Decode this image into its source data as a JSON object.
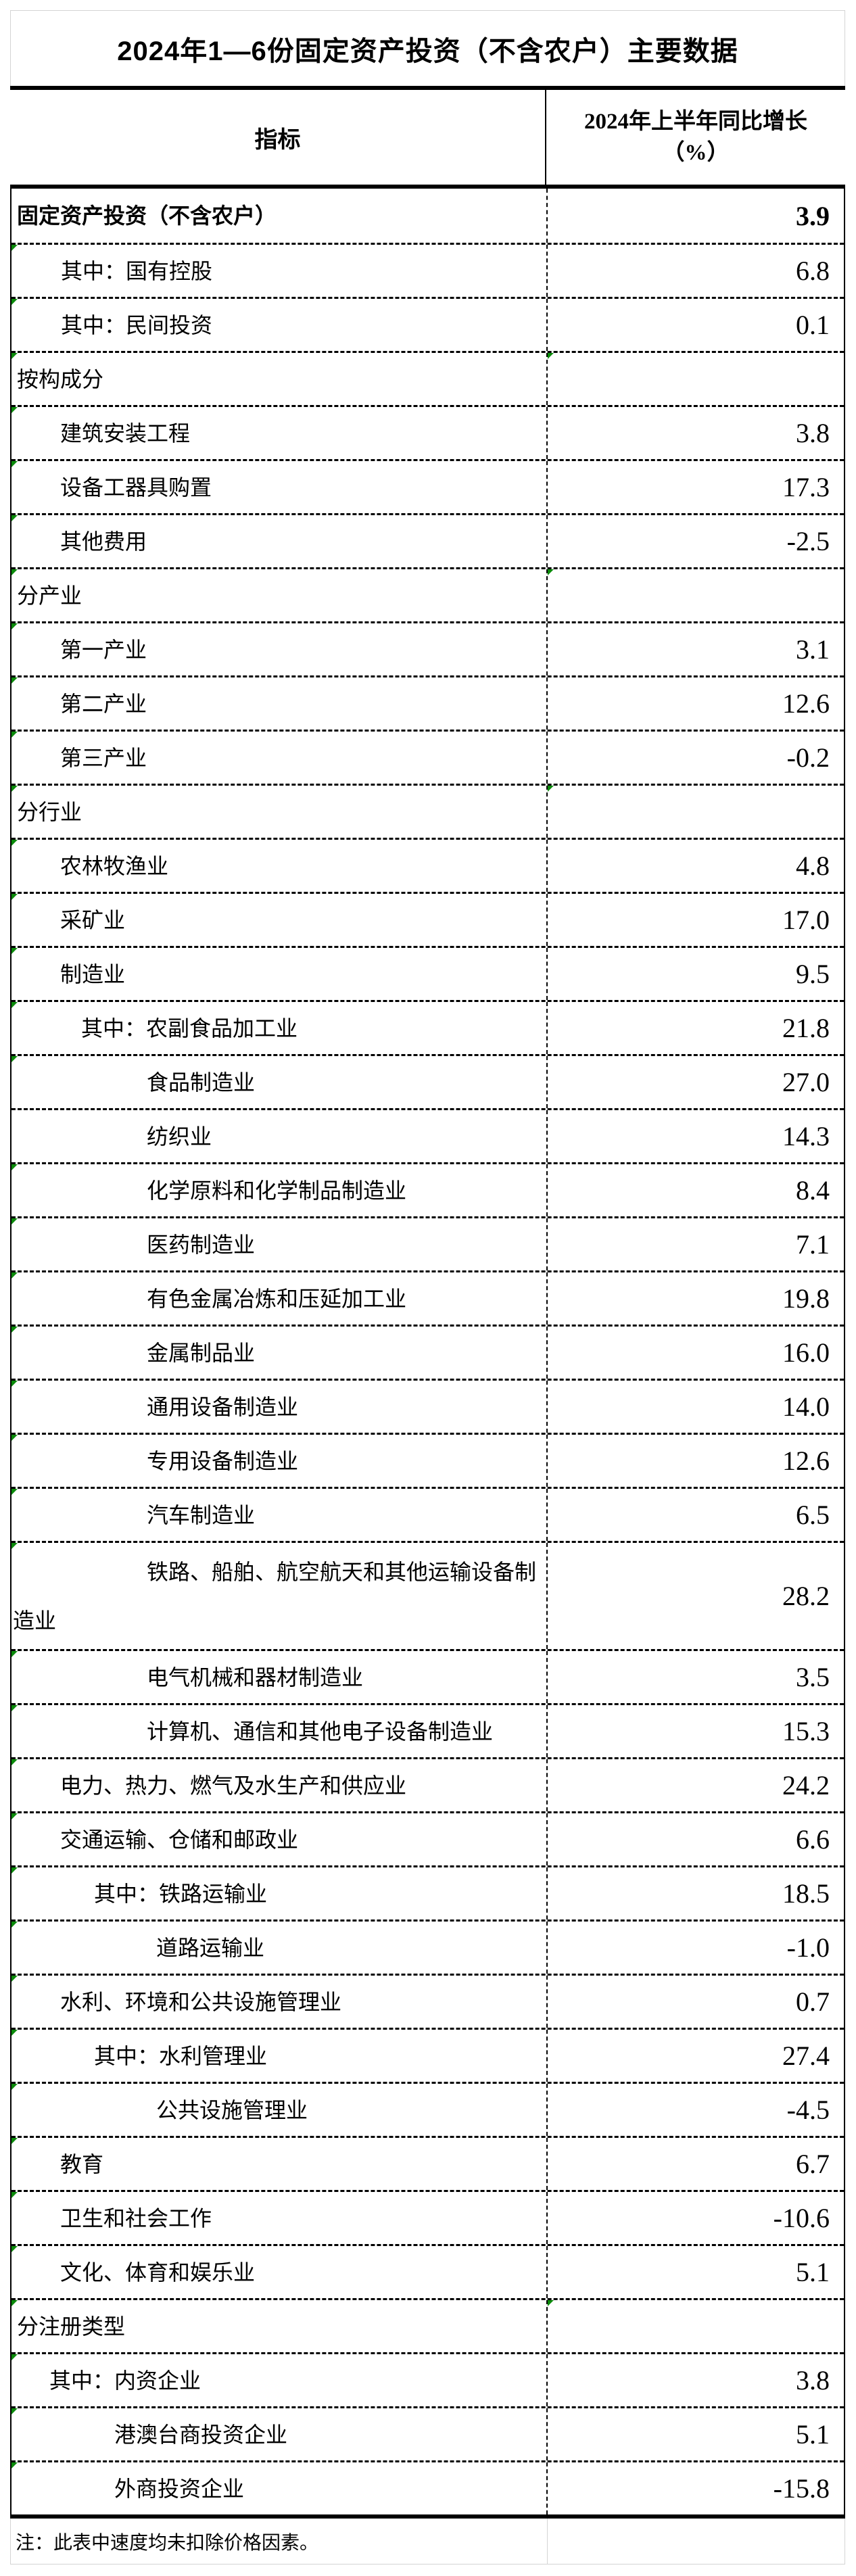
{
  "title": "2024年1—6份固定资产投资（不含农户）主要数据",
  "header": {
    "indicator": "指标",
    "value_line1": "2024年上半年同比增长",
    "value_line2": "（%）"
  },
  "rows": [
    {
      "label": "固定资产投资（不含农户）",
      "value": "3.9",
      "indent": 6,
      "bold": true
    },
    {
      "label": "其中：国有控股",
      "value": "6.8",
      "indent": 71,
      "flag_label": true
    },
    {
      "label": "其中：民间投资",
      "value": "0.1",
      "indent": 71,
      "flag_label": true
    },
    {
      "label": "按构成分",
      "value": "",
      "indent": 6,
      "flag_label": true,
      "flag_value": true
    },
    {
      "label": "建筑安装工程",
      "value": "3.8",
      "indent": 70,
      "flag_label": true
    },
    {
      "label": "设备工器具购置",
      "value": "17.3",
      "indent": 70,
      "flag_label": true
    },
    {
      "label": "其他费用",
      "value": "-2.5",
      "indent": 70,
      "flag_label": true
    },
    {
      "label": "分产业",
      "value": "",
      "indent": 6,
      "flag_label": true,
      "flag_value": true
    },
    {
      "label": "第一产业",
      "value": "3.1",
      "indent": 70,
      "flag_label": true
    },
    {
      "label": "第二产业",
      "value": "12.6",
      "indent": 70,
      "flag_label": true
    },
    {
      "label": "第三产业",
      "value": "-0.2",
      "indent": 70,
      "flag_label": true
    },
    {
      "label": "分行业",
      "value": "",
      "indent": 6,
      "flag_label": true,
      "flag_value": true
    },
    {
      "label": "农林牧渔业",
      "value": "4.8",
      "indent": 70,
      "flag_label": true
    },
    {
      "label": "采矿业",
      "value": "17.0",
      "indent": 70,
      "flag_label": true
    },
    {
      "label": "制造业",
      "value": "9.5",
      "indent": 70,
      "flag_label": true
    },
    {
      "label": "其中：农副食品加工业",
      "value": "21.8",
      "indent": 101,
      "flag_label": true
    },
    {
      "label": "食品制造业",
      "value": "27.0",
      "indent": 198,
      "flag_label": true
    },
    {
      "label": "纺织业",
      "value": "14.3",
      "indent": 198
    },
    {
      "label": "化学原料和化学制品制造业",
      "value": "8.4",
      "indent": 198,
      "flag_label": true
    },
    {
      "label": "医药制造业",
      "value": "7.1",
      "indent": 198,
      "flag_label": true
    },
    {
      "label": "有色金属冶炼和压延加工业",
      "value": "19.8",
      "indent": 198,
      "flag_label": true
    },
    {
      "label": "金属制品业",
      "value": "16.0",
      "indent": 198,
      "flag_label": true
    },
    {
      "label": "通用设备制造业",
      "value": "14.0",
      "indent": 198,
      "flag_label": true
    },
    {
      "label": "专用设备制造业",
      "value": "12.6",
      "indent": 198,
      "flag_label": true
    },
    {
      "label": "汽车制造业",
      "value": "6.5",
      "indent": 198,
      "flag_label": true
    },
    {
      "label": "铁路、船舶、航空航天和其他运输设备制造业",
      "value": "28.2",
      "indent": 198,
      "flag_label": true,
      "tall": true
    },
    {
      "label": "电气机械和器材制造业",
      "value": "3.5",
      "indent": 198,
      "flag_label": true
    },
    {
      "label": "计算机、通信和其他电子设备制造业",
      "value": "15.3",
      "indent": 198,
      "flag_label": true
    },
    {
      "label": "电力、热力、燃气及水生产和供应业",
      "value": "24.2",
      "indent": 70,
      "flag_label": true
    },
    {
      "label": "交通运输、仓储和邮政业",
      "value": "6.6",
      "indent": 70,
      "flag_label": true
    },
    {
      "label": "其中：铁路运输业",
      "value": "18.5",
      "indent": 120,
      "flag_label": true
    },
    {
      "label": "道路运输业",
      "value": "-1.0",
      "indent": 212,
      "flag_label": true
    },
    {
      "label": "水利、环境和公共设施管理业",
      "value": "0.7",
      "indent": 70,
      "flag_label": true
    },
    {
      "label": "其中：水利管理业",
      "value": "27.4",
      "indent": 120,
      "flag_label": true
    },
    {
      "label": "公共设施管理业",
      "value": "-4.5",
      "indent": 212,
      "flag_label": true
    },
    {
      "label": "教育",
      "value": "6.7",
      "indent": 70,
      "flag_label": true
    },
    {
      "label": "卫生和社会工作",
      "value": "-10.6",
      "indent": 70,
      "flag_label": true
    },
    {
      "label": "文化、体育和娱乐业",
      "value": "5.1",
      "indent": 70,
      "flag_label": true
    },
    {
      "label": "分注册类型",
      "value": "",
      "indent": 6,
      "flag_label": true,
      "flag_value": true
    },
    {
      "label": "其中：内资企业",
      "value": "3.8",
      "indent": 54,
      "flag_label": true
    },
    {
      "label": "港澳台商投资企业",
      "value": "5.1",
      "indent": 150,
      "flag_label": true
    },
    {
      "label": "外商投资企业",
      "value": "-15.8",
      "indent": 150,
      "flag_label": true
    }
  ],
  "footnote": "注：此表中速度均未扣除价格因素。",
  "icons": {
    "cell_flag": "green-triangle"
  },
  "colors": {
    "accent_triangle": "#0a8a0a",
    "rule": "#000000",
    "gridline": "#d4d4d4",
    "text": "#000000",
    "background": "#ffffff"
  }
}
